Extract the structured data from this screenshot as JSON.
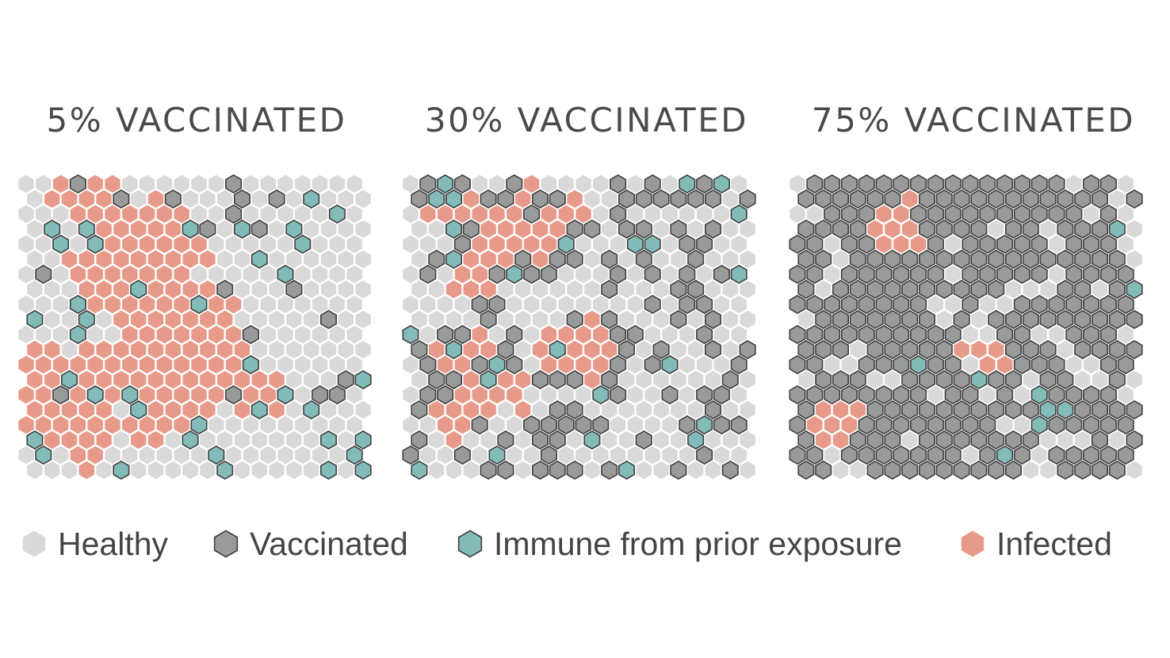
{
  "colors": {
    "H": {
      "fill": "#d9d9d9",
      "stroke": "none"
    },
    "V": {
      "fill": "#999b9a",
      "stroke": "#3f3f3f"
    },
    "M": {
      "fill": "#82bbb8",
      "stroke": "#3f3f3f"
    },
    "I": {
      "fill": "#e89a8a",
      "stroke": "none"
    },
    "text": "#4a4a4a"
  },
  "legend": [
    {
      "key": "H",
      "label": "Healthy"
    },
    {
      "key": "V",
      "label": "Vaccinated"
    },
    {
      "key": "M",
      "label": "Immune from prior exposure"
    },
    {
      "key": "I",
      "label": "Infected"
    }
  ],
  "panels": [
    {
      "title": "5% VACCINATED"
    },
    {
      "title": "30% VACCINATED"
    },
    {
      "title": "75% VACCINATED"
    }
  ],
  "chart_data": {
    "type": "heatmap",
    "layout": "hexagonal grid, pointy-top, 20 rows x 20 columns per panel, odd rows offset right by half a cell",
    "legend_position": "bottom",
    "key": {
      "H": "Healthy",
      "V": "Vaccinated",
      "M": "Immune from prior exposure",
      "I": "Infected"
    },
    "series": [
      {
        "name": "5% VACCINATED",
        "rows": [
          "HHIVIIHHHHHHVHHHHHHH",
          "HIIIIVHIVHHHVHVHMHHH",
          "HHHIIIIIIIHHVHHHHHMH",
          "HMHMIIIIIMVHMVHMHHHH",
          "HHMHMIIIIIIHHHHHMHHH",
          "HHIIIIIIIIIHHMHHHHHH",
          "HVHIIIIIIIHHHHHMHHHH",
          "HHHIIIMIIIIVHHHVHHHH",
          "HHHMIIIIIIMIIHHHHHHH",
          "MHHMHIIIIIIIHHHHHVHH",
          "HHHMHHIIIIIIIVHHHHHH",
          "IIHIIIIIIIIIIHHHHHHH",
          "IIIIIIIIIIIIIMHHHHHH",
          "IIMIIIIIIIIIIIIHHHVM",
          "IIVIMIMIIIIIVIIMHVVH",
          "IIIIIHMIIIIHIMIHMHHH",
          "IIIIIIIIIIMHHHHHHHHH",
          "MIIIIHIIHMHHHHHHHMHM",
          "HMHIIHHHHHHMHHHHHHHM",
          "HHHIHMHHHHHMHHHHHMHM"
        ]
      },
      {
        "name": "30% VACCINATED",
        "rows": [
          "HVMVHHVIHHHHVHVHMVMH",
          "VMMIVVIVVIHHVVVVVVHV",
          "HIIIIIIVIIIHVHHHHHHM",
          "HHMVIIIIIVVHVVHVHVHH",
          "HHHVIIIIIMHHHMMHVVHH",
          "HVMIIIVIVVHVHVHHVHHH",
          "HVHIIVMVVHHHVHVHVHVM",
          "HHIIIHHHHHHVHHHVVHHH",
          "HHHHVVHHHHHHHHVHVVHH",
          "HHHHVHHHHVIVHHHVHVHH",
          "MHVVIHVHIIIIVVHHHVHH",
          "VIMIIVHIMIIIVHVHHVHV",
          "HVIIVMVHIIIIVHVMHHHV",
          "HVVIMIIVVVIVHHHHHHVH",
          "HVVIIIIHHHHMVHHVHVVH",
          "VIIIIHIHVVHHHHHHHVHH",
          "HHIIVHHVVVVVHHHHVMVV",
          "VHIHHVHVVHMHHVHHMHHH",
          "VHHVHMHHVHHHHHHHHVHH",
          "MHHHVVHVVVHVMHHVHHVH"
        ]
      },
      {
        "name": "75% VACCINATED",
        "rows": [
          "HVVVVVVVVVVVVVVVHVVH",
          "VVVVVVIVVVVVVVVVVVHV",
          "HHVVVIIVVVVVVVVVVHVH",
          "VVVVIIIVVVVHVVHVVVMH",
          "VVHVVIIIVHVVVVVHVVVH",
          "VVHVVVVVVVVVVVVVVVVH",
          "VVHVVVVVVHVVVVVHVVVV",
          "VHVVVVVVVVVVHHHVVHVM",
          "VVVVVVVVHHVHHVVVVVVV",
          "HVVVVVVVHVHVVVVVVVVV",
          "VVVVVVVVVVHHVVHHVVVH",
          "VVVHVVVVVIIIVVVHVVVV",
          "VVHHVVVMVVHIIVVVHHVV",
          "HVVVHHVVVVMVVHVVHHVH",
          "VVVVVVVVHVVHVHMVVVVH",
          "VIIIVVVVVVVVVVMMVVVV",
          "VIIIVVVVVVVVHHMVVVVV",
          "VIIVVVHVVVVVVVHHHVHV",
          "VVHVVVVVVVHVMVHVVVVV",
          "VVHHVVVVVVVVVHHVVVVH"
        ]
      }
    ]
  }
}
